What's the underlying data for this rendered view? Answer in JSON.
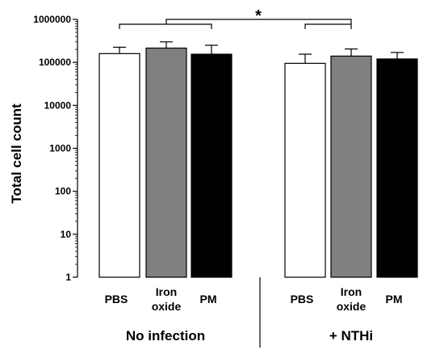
{
  "chart_data": {
    "type": "bar",
    "ylabel": "Total cell count",
    "yscale": "log",
    "ylim": [
      1,
      1000000
    ],
    "yticks": [
      "1",
      "10",
      "100",
      "1000",
      "10000",
      "100000",
      "1000000"
    ],
    "groups": [
      {
        "label": "No infection",
        "bars": [
          {
            "label": [
              "PBS"
            ],
            "value": 160000,
            "error": 65000,
            "color": "#ffffff"
          },
          {
            "label": [
              "Iron",
              "oxide"
            ],
            "value": 215000,
            "error": 85000,
            "color": "#808080"
          },
          {
            "label": [
              "PM"
            ],
            "value": 155000,
            "error": 95000,
            "color": "#000000"
          }
        ]
      },
      {
        "label": "+ NTHi",
        "bars": [
          {
            "label": [
              "PBS"
            ],
            "value": 95000,
            "error": 60000,
            "color": "#ffffff"
          },
          {
            "label": [
              "Iron",
              "oxide"
            ],
            "value": 140000,
            "error": 65000,
            "color": "#808080"
          },
          {
            "label": [
              "PM"
            ],
            "value": 120000,
            "error": 50000,
            "color": "#000000"
          }
        ]
      }
    ],
    "annotation": "*"
  }
}
